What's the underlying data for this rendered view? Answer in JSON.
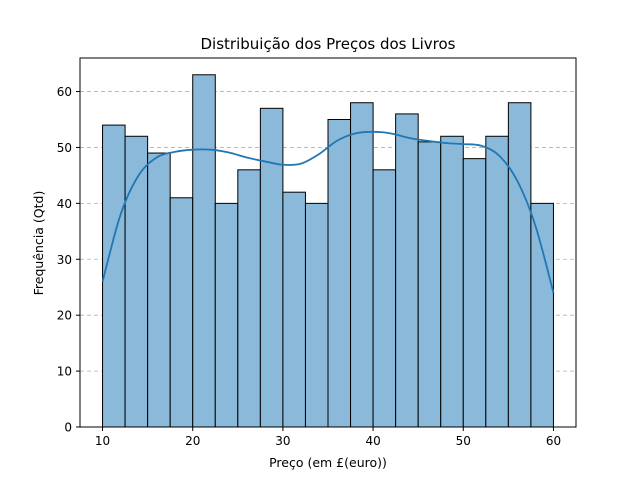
{
  "chart_data": {
    "type": "bar",
    "title": "Distribuição dos Preços dos Livros",
    "xlabel": "Preço (em £(euro))",
    "ylabel": "Frequência (Qtd)",
    "xlim": [
      7.5,
      62.5
    ],
    "ylim": [
      0,
      66
    ],
    "xticks": [
      10,
      20,
      30,
      40,
      50,
      60
    ],
    "yticks": [
      0,
      10,
      20,
      30,
      40,
      50,
      60
    ],
    "grid": "y-dashed",
    "bins": [
      {
        "start": 10.0,
        "end": 12.5,
        "count": 54
      },
      {
        "start": 12.5,
        "end": 15.0,
        "count": 52
      },
      {
        "start": 15.0,
        "end": 17.5,
        "count": 49
      },
      {
        "start": 17.5,
        "end": 20.0,
        "count": 41
      },
      {
        "start": 20.0,
        "end": 22.5,
        "count": 63
      },
      {
        "start": 22.5,
        "end": 25.0,
        "count": 40
      },
      {
        "start": 25.0,
        "end": 27.5,
        "count": 46
      },
      {
        "start": 27.5,
        "end": 30.0,
        "count": 57
      },
      {
        "start": 30.0,
        "end": 32.5,
        "count": 42
      },
      {
        "start": 32.5,
        "end": 35.0,
        "count": 40
      },
      {
        "start": 35.0,
        "end": 37.5,
        "count": 55
      },
      {
        "start": 37.5,
        "end": 40.0,
        "count": 58
      },
      {
        "start": 40.0,
        "end": 42.5,
        "count": 46
      },
      {
        "start": 42.5,
        "end": 45.0,
        "count": 56
      },
      {
        "start": 45.0,
        "end": 47.5,
        "count": 51
      },
      {
        "start": 47.5,
        "end": 50.0,
        "count": 52
      },
      {
        "start": 50.0,
        "end": 52.5,
        "count": 48
      },
      {
        "start": 52.5,
        "end": 55.0,
        "count": 52
      },
      {
        "start": 55.0,
        "end": 57.5,
        "count": 58
      },
      {
        "start": 57.5,
        "end": 60.0,
        "count": 40
      }
    ],
    "kde": {
      "x": [
        10,
        12,
        14,
        16,
        18,
        20,
        22,
        24,
        26,
        28,
        30,
        32,
        34,
        36,
        38,
        40,
        42,
        44,
        46,
        48,
        50,
        52,
        54,
        56,
        58,
        60
      ],
      "y": [
        26,
        38,
        45,
        48.2,
        49.2,
        49.6,
        49.6,
        49.1,
        48.2,
        47.5,
        46.9,
        47.1,
        48.8,
        51.2,
        52.5,
        52.8,
        52.5,
        51.7,
        51.2,
        50.8,
        50.6,
        50.3,
        48.5,
        44,
        36,
        24
      ]
    },
    "colors": {
      "bar_fill": "#8bb9da",
      "bar_edge": "#000000",
      "kde_line": "#1f77b4",
      "grid": "#b0b0b0"
    }
  }
}
